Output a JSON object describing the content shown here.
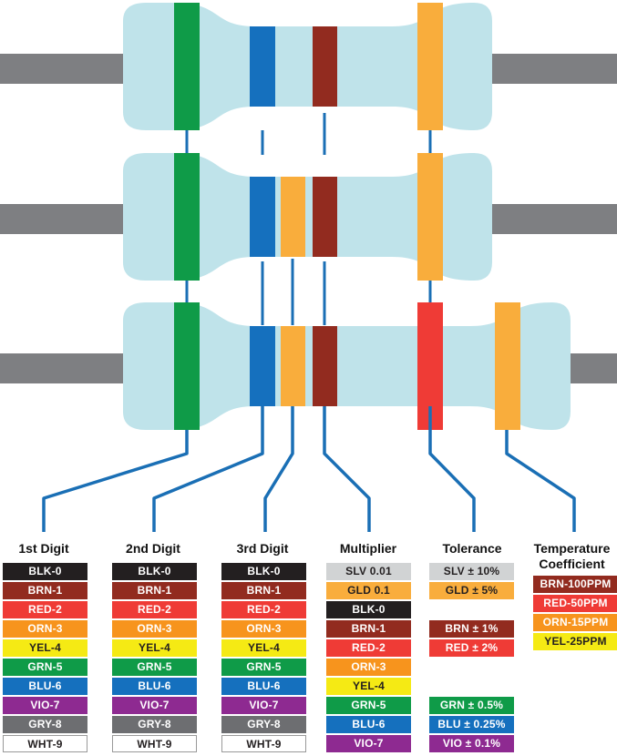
{
  "colors": {
    "body": "#bfe3ea",
    "lead": "#7e7f82",
    "connector": "#1a6fb5",
    "green_band": "#0f9b48",
    "blue_band": "#1570be",
    "brown_band": "#922b1f",
    "gold_band": "#f9ad3c",
    "red_band": "#ef3b36"
  },
  "columns": {
    "digit1": {
      "title": "1st Digit",
      "chips": [
        {
          "label": "BLK-0",
          "bg": "#231f20",
          "fg": "#ffffff"
        },
        {
          "label": "BRN-1",
          "bg": "#922b1f",
          "fg": "#ffffff"
        },
        {
          "label": "RED-2",
          "bg": "#ef3b36",
          "fg": "#ffffff"
        },
        {
          "label": "ORN-3",
          "bg": "#f7941d",
          "fg": "#ffffff"
        },
        {
          "label": "YEL-4",
          "bg": "#f5ea14",
          "fg": "#231f20"
        },
        {
          "label": "GRN-5",
          "bg": "#0f9b48",
          "fg": "#ffffff"
        },
        {
          "label": "BLU-6",
          "bg": "#1570be",
          "fg": "#ffffff"
        },
        {
          "label": "VIO-7",
          "bg": "#8e2a91",
          "fg": "#ffffff"
        },
        {
          "label": "GRY-8",
          "bg": "#6d6e71",
          "fg": "#ffffff"
        },
        {
          "label": "WHT-9",
          "bg": "#ffffff",
          "fg": "#231f20",
          "border": "#999999"
        }
      ]
    },
    "digit2": {
      "title": "2nd Digit",
      "chips": [
        {
          "label": "BLK-0",
          "bg": "#231f20",
          "fg": "#ffffff"
        },
        {
          "label": "BRN-1",
          "bg": "#922b1f",
          "fg": "#ffffff"
        },
        {
          "label": "RED-2",
          "bg": "#ef3b36",
          "fg": "#ffffff"
        },
        {
          "label": "ORN-3",
          "bg": "#f7941d",
          "fg": "#ffffff"
        },
        {
          "label": "YEL-4",
          "bg": "#f5ea14",
          "fg": "#231f20"
        },
        {
          "label": "GRN-5",
          "bg": "#0f9b48",
          "fg": "#ffffff"
        },
        {
          "label": "BLU-6",
          "bg": "#1570be",
          "fg": "#ffffff"
        },
        {
          "label": "VIO-7",
          "bg": "#8e2a91",
          "fg": "#ffffff"
        },
        {
          "label": "GRY-8",
          "bg": "#6d6e71",
          "fg": "#ffffff"
        },
        {
          "label": "WHT-9",
          "bg": "#ffffff",
          "fg": "#231f20",
          "border": "#999999"
        }
      ]
    },
    "digit3": {
      "title": "3rd Digit",
      "chips": [
        {
          "label": "BLK-0",
          "bg": "#231f20",
          "fg": "#ffffff"
        },
        {
          "label": "BRN-1",
          "bg": "#922b1f",
          "fg": "#ffffff"
        },
        {
          "label": "RED-2",
          "bg": "#ef3b36",
          "fg": "#ffffff"
        },
        {
          "label": "ORN-3",
          "bg": "#f7941d",
          "fg": "#ffffff"
        },
        {
          "label": "YEL-4",
          "bg": "#f5ea14",
          "fg": "#231f20"
        },
        {
          "label": "GRN-5",
          "bg": "#0f9b48",
          "fg": "#ffffff"
        },
        {
          "label": "BLU-6",
          "bg": "#1570be",
          "fg": "#ffffff"
        },
        {
          "label": "VIO-7",
          "bg": "#8e2a91",
          "fg": "#ffffff"
        },
        {
          "label": "GRY-8",
          "bg": "#6d6e71",
          "fg": "#ffffff"
        },
        {
          "label": "WHT-9",
          "bg": "#ffffff",
          "fg": "#231f20",
          "border": "#999999"
        }
      ]
    },
    "multiplier": {
      "title": "Multiplier",
      "chips": [
        {
          "label": "SLV 0.01",
          "bg": "#d1d3d4",
          "fg": "#231f20"
        },
        {
          "label": "GLD 0.1",
          "bg": "#f9ad3c",
          "fg": "#231f20"
        },
        {
          "label": "BLK-0",
          "bg": "#231f20",
          "fg": "#ffffff"
        },
        {
          "label": "BRN-1",
          "bg": "#922b1f",
          "fg": "#ffffff"
        },
        {
          "label": "RED-2",
          "bg": "#ef3b36",
          "fg": "#ffffff"
        },
        {
          "label": "ORN-3",
          "bg": "#f7941d",
          "fg": "#ffffff"
        },
        {
          "label": "YEL-4",
          "bg": "#f5ea14",
          "fg": "#231f20"
        },
        {
          "label": "GRN-5",
          "bg": "#0f9b48",
          "fg": "#ffffff"
        },
        {
          "label": "BLU-6",
          "bg": "#1570be",
          "fg": "#ffffff"
        },
        {
          "label": "VIO-7",
          "bg": "#8e2a91",
          "fg": "#ffffff"
        }
      ]
    },
    "tolerance": {
      "title": "Tolerance",
      "chips": [
        {
          "label": "SLV ± 10%",
          "bg": "#d1d3d4",
          "fg": "#231f20"
        },
        {
          "label": "GLD ± 5%",
          "bg": "#f9ad3c",
          "fg": "#231f20"
        },
        {
          "label": "BRN ± 1%",
          "bg": "#922b1f",
          "fg": "#ffffff"
        },
        {
          "label": "RED ± 2%",
          "bg": "#ef3b36",
          "fg": "#ffffff"
        },
        {
          "label": "GRN ± 0.5%",
          "bg": "#0f9b48",
          "fg": "#ffffff"
        },
        {
          "label": "BLU ± 0.25%",
          "bg": "#1570be",
          "fg": "#ffffff"
        },
        {
          "label": "VIO ± 0.1%",
          "bg": "#8e2a91",
          "fg": "#ffffff"
        }
      ]
    },
    "tempco": {
      "title_line1": "Temperature",
      "title_line2": "Coefficient",
      "chips": [
        {
          "label": "BRN-100PPM",
          "bg": "#922b1f",
          "fg": "#ffffff"
        },
        {
          "label": "RED-50PPM",
          "bg": "#ef3b36",
          "fg": "#ffffff"
        },
        {
          "label": "ORN-15PPM",
          "bg": "#f7941d",
          "fg": "#ffffff"
        },
        {
          "label": "YEL-25PPM",
          "bg": "#f5ea14",
          "fg": "#231f20"
        }
      ]
    }
  }
}
